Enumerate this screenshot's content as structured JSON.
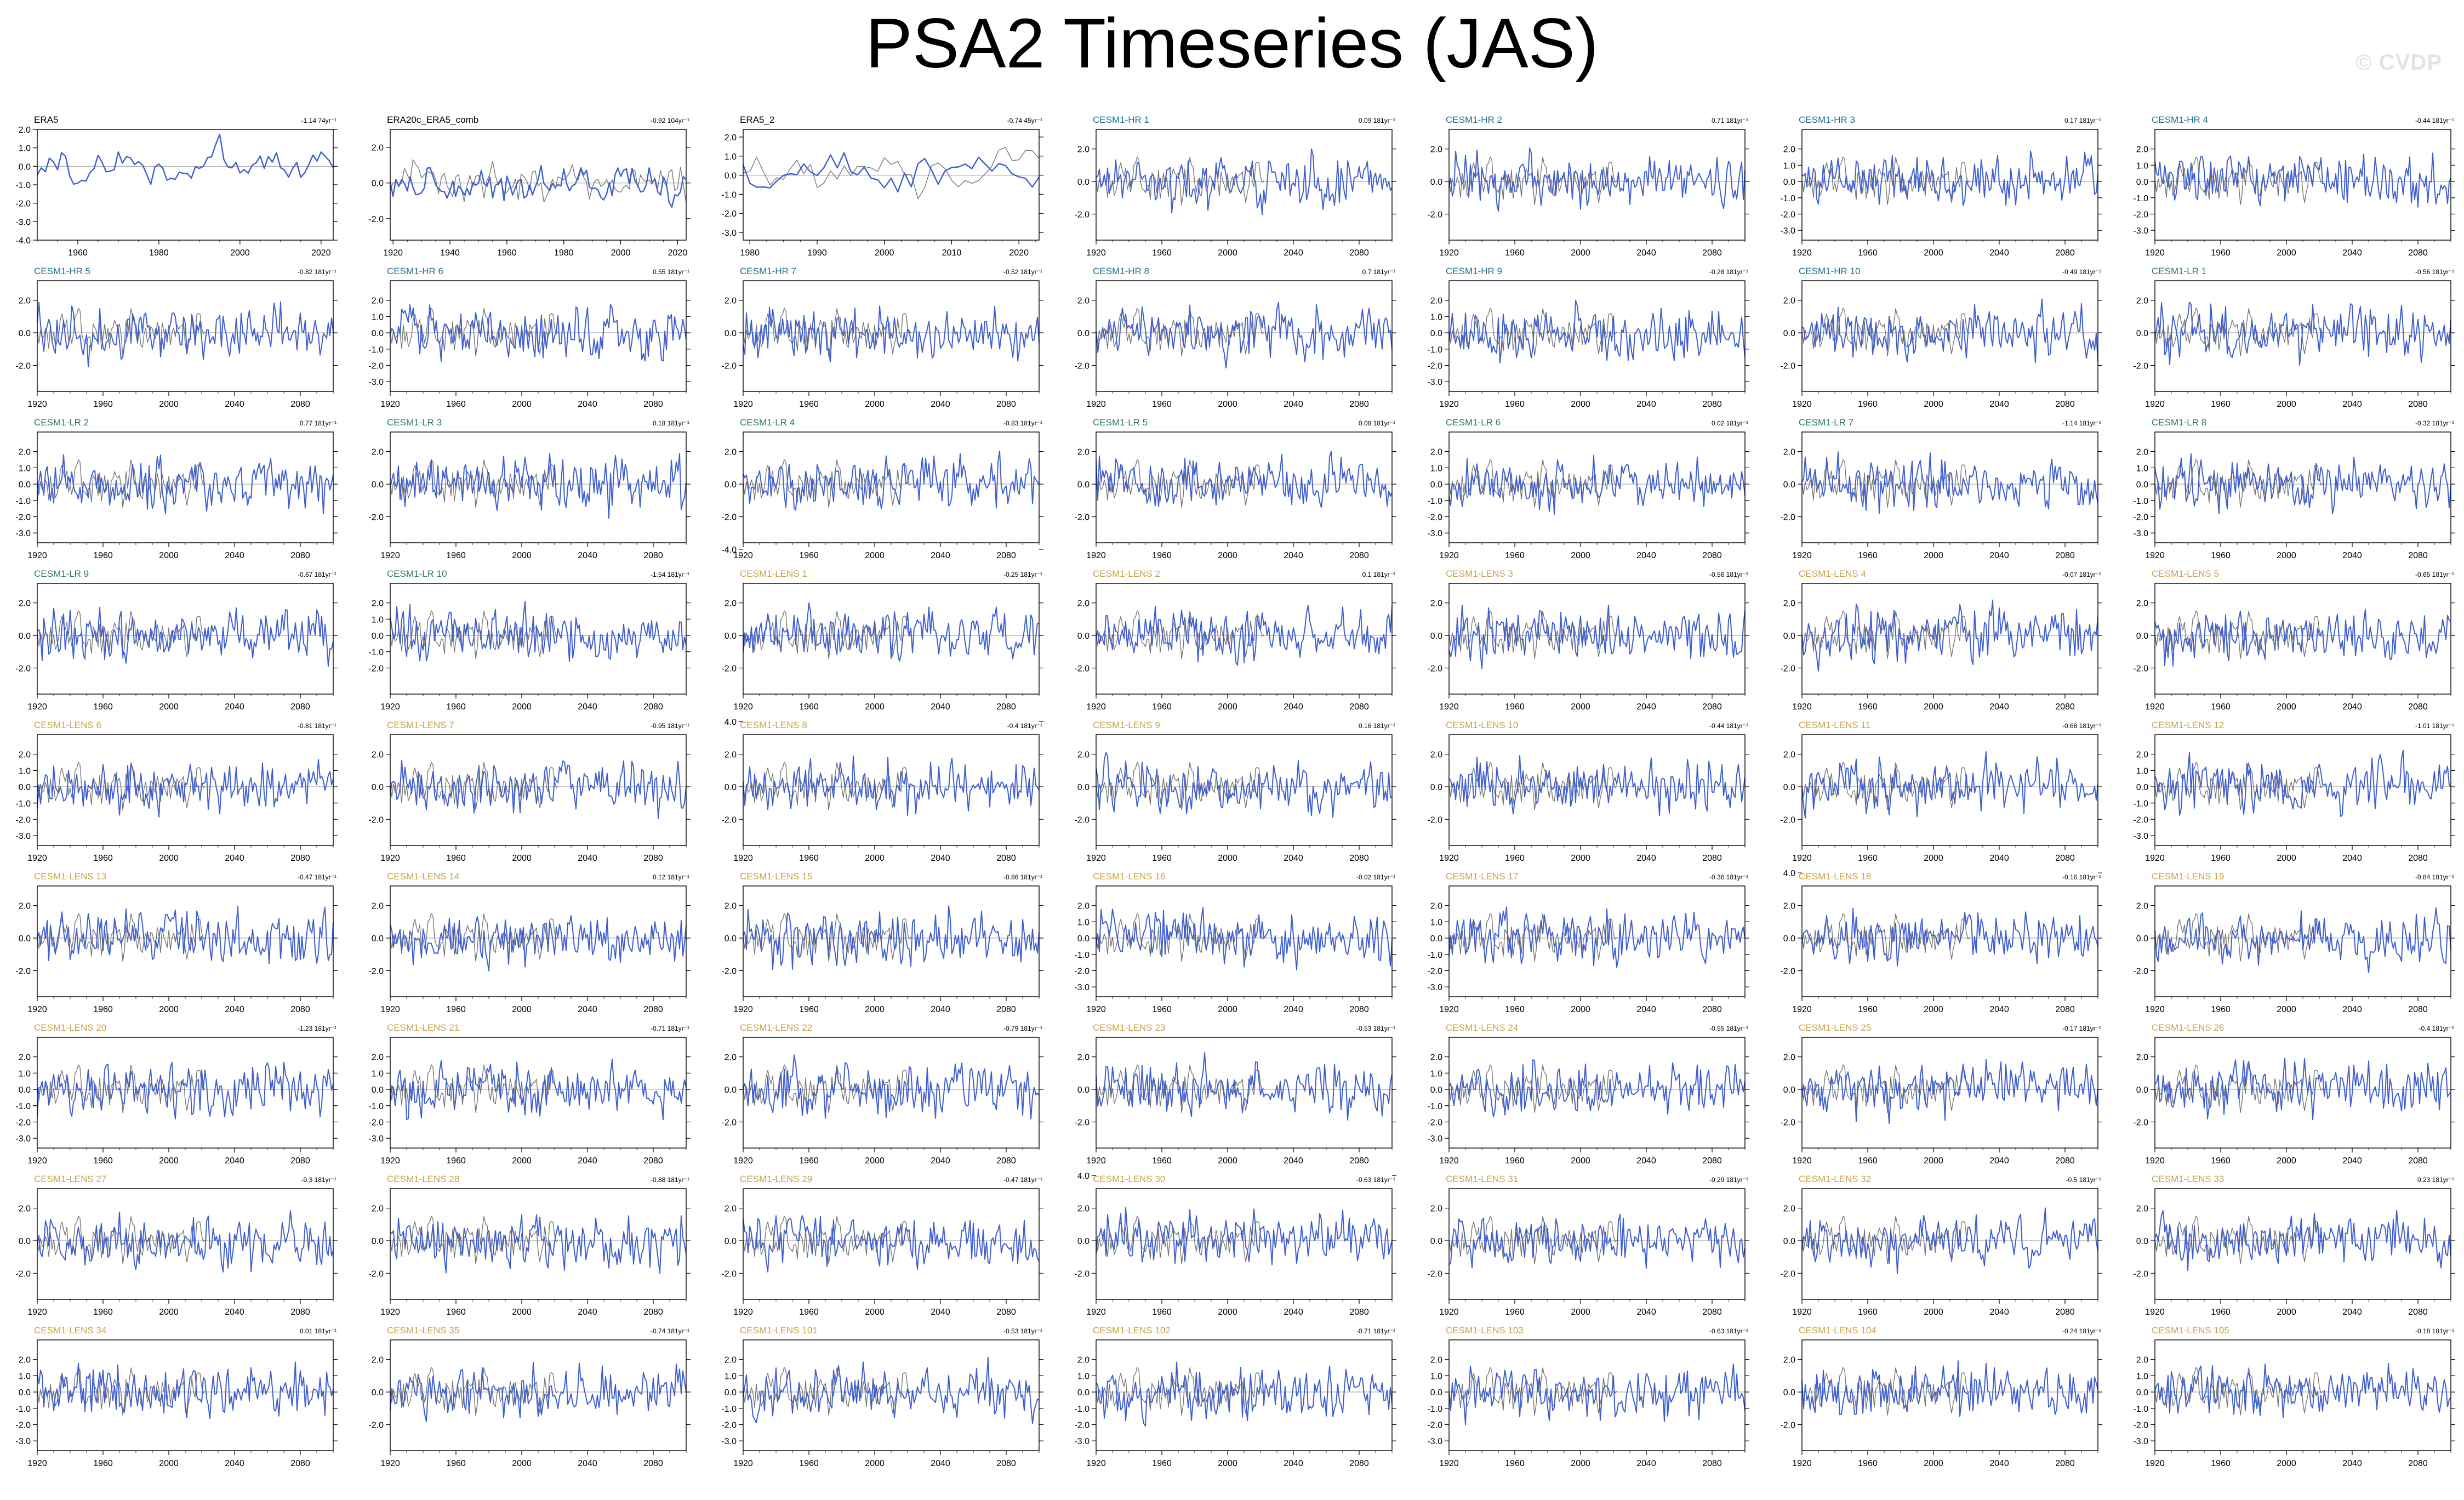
{
  "page": {
    "title": "PSA2 Timeseries (JAS)",
    "watermark": "© CVDP"
  },
  "colors": {
    "obs": "#000000",
    "model": "#3f5fd0",
    "ref_obs": "#777777",
    "zero_line": "#9a9a9a",
    "label_obs": "#000000",
    "label_hr": "#1f6f8f",
    "label_lr": "#2e7d52",
    "label_lens": "#c8a24a"
  },
  "chart_data": {
    "type": "line",
    "layout": {
      "rows": 9,
      "cols": 7
    },
    "panels": [
      {
        "name": "ERA5",
        "kind": "obs",
        "trend": "-1.14 74yr⁻¹",
        "xticks": [
          1960,
          1980,
          2000,
          2020
        ],
        "yticks": [
          "2.0",
          "1.0",
          "0.0",
          "-1.0",
          "-2.0",
          "-3.0",
          "-4.0"
        ],
        "xlim": [
          1950,
          2023
        ],
        "ylim": [
          -4,
          2
        ]
      },
      {
        "name": "ERA20c_ERA5_comb",
        "kind": "obs",
        "trend": "-0.92 104yr⁻¹",
        "xticks": [
          1920,
          1940,
          1960,
          1980,
          2000,
          2020
        ],
        "yticks": [
          "2.0",
          "0.0",
          "-2.0"
        ],
        "xlim": [
          1919,
          2023
        ],
        "ylim": [
          -3.2,
          3
        ]
      },
      {
        "name": "ERA5_2",
        "kind": "obs",
        "trend": "-0.74 45yr⁻¹",
        "xticks": [
          1980,
          1990,
          2000,
          2010,
          2020
        ],
        "yticks": [
          "2.0",
          "1.0",
          "0.0",
          "-1.0",
          "-2.0",
          "-3.0"
        ],
        "xlim": [
          1979,
          2023
        ],
        "ylim": [
          -3.4,
          2.4
        ]
      },
      {
        "name": "CESM1-HR 1",
        "kind": "hr",
        "trend": "0.09 181yr⁻¹"
      },
      {
        "name": "CESM1-HR 2",
        "kind": "hr",
        "trend": "0.71 181yr⁻¹"
      },
      {
        "name": "CESM1-HR 3",
        "kind": "hr",
        "trend": "0.17 181yr⁻¹",
        "yticks": [
          "2.0",
          "1.0",
          "0.0",
          "-1.0",
          "-2.0",
          "-3.0"
        ]
      },
      {
        "name": "CESM1-HR 4",
        "kind": "hr",
        "trend": "-0.44 181yr⁻¹",
        "yticks": [
          "2.0",
          "1.0",
          "0.0",
          "-1.0",
          "-2.0",
          "-3.0"
        ]
      },
      {
        "name": "CESM1-HR 5",
        "kind": "hr",
        "trend": "-0.82 181yr⁻¹"
      },
      {
        "name": "CESM1-HR 6",
        "kind": "hr",
        "trend": "0.55 181yr⁻¹",
        "yticks": [
          "2.0",
          "1.0",
          "0.0",
          "-1.0",
          "-2.0",
          "-3.0"
        ]
      },
      {
        "name": "CESM1-HR 7",
        "kind": "hr",
        "trend": "-0.52 181yr⁻¹"
      },
      {
        "name": "CESM1-HR 8",
        "kind": "hr",
        "trend": "0.7 181yr⁻¹"
      },
      {
        "name": "CESM1-HR 9",
        "kind": "hr",
        "trend": "-0.28 181yr⁻¹",
        "yticks": [
          "2.0",
          "1.0",
          "0.0",
          "-1.0",
          "-2.0",
          "-3.0"
        ]
      },
      {
        "name": "CESM1-HR 10",
        "kind": "hr",
        "trend": "-0.49 181yr⁻¹"
      },
      {
        "name": "CESM1-LR 1",
        "kind": "lr",
        "trend": "-0.56 181yr⁻¹"
      },
      {
        "name": "CESM1-LR 2",
        "kind": "lr",
        "trend": "0.77 181yr⁻¹",
        "yticks": [
          "2.0",
          "1.0",
          "0.0",
          "-1.0",
          "-2.0",
          "-3.0"
        ]
      },
      {
        "name": "CESM1-LR 3",
        "kind": "lr",
        "trend": "0.18 181yr⁻¹"
      },
      {
        "name": "CESM1-LR 4",
        "kind": "lr",
        "trend": "-0.83 181yr⁻¹",
        "yticks": [
          "2.0",
          "0.0",
          "-2.0",
          "-4.0"
        ]
      },
      {
        "name": "CESM1-LR 5",
        "kind": "lr",
        "trend": "0.08 181yr⁻¹"
      },
      {
        "name": "CESM1-LR 6",
        "kind": "lr",
        "trend": "0.02 181yr⁻¹",
        "yticks": [
          "2.0",
          "1.0",
          "0.0",
          "-1.0",
          "-2.0",
          "-3.0"
        ]
      },
      {
        "name": "CESM1-LR 7",
        "kind": "lr",
        "trend": "-1.14 181yr⁻¹"
      },
      {
        "name": "CESM1-LR 8",
        "kind": "lr",
        "trend": "-0.32 181yr⁻¹",
        "yticks": [
          "2.0",
          "1.0",
          "0.0",
          "-1.0",
          "-2.0",
          "-3.0"
        ]
      },
      {
        "name": "CESM1-LR 9",
        "kind": "lr",
        "trend": "-0.67 181yr⁻¹"
      },
      {
        "name": "CESM1-LR 10",
        "kind": "lr",
        "trend": "-1.54 181yr⁻¹",
        "yticks": [
          "2.0",
          "1.0",
          "0.0",
          "-1.0",
          "-2.0"
        ]
      },
      {
        "name": "CESM1-LENS 1",
        "kind": "lens",
        "trend": "-0.25 181yr⁻¹"
      },
      {
        "name": "CESM1-LENS 2",
        "kind": "lens",
        "trend": "0.1 181yr⁻¹"
      },
      {
        "name": "CESM1-LENS 3",
        "kind": "lens",
        "trend": "-0.56 181yr⁻¹"
      },
      {
        "name": "CESM1-LENS 4",
        "kind": "lens",
        "trend": "-0.07 181yr⁻¹"
      },
      {
        "name": "CESM1-LENS 5",
        "kind": "lens",
        "trend": "-0.65 181yr⁻¹"
      },
      {
        "name": "CESM1-LENS 6",
        "kind": "lens",
        "trend": "-0.81 181yr⁻¹",
        "yticks": [
          "2.0",
          "1.0",
          "0.0",
          "-1.0",
          "-2.0",
          "-3.0"
        ]
      },
      {
        "name": "CESM1-LENS 7",
        "kind": "lens",
        "trend": "-0.95 181yr⁻¹"
      },
      {
        "name": "CESM1-LENS 8",
        "kind": "lens",
        "trend": "-0.4 181yr⁻¹",
        "yticks": [
          "4.0",
          "2.0",
          "0.0",
          "-2.0"
        ]
      },
      {
        "name": "CESM1-LENS 9",
        "kind": "lens",
        "trend": "0.16 181yr⁻¹"
      },
      {
        "name": "CESM1-LENS 10",
        "kind": "lens",
        "trend": "-0.44 181yr⁻¹"
      },
      {
        "name": "CESM1-LENS 11",
        "kind": "lens",
        "trend": "-0.68 181yr⁻¹"
      },
      {
        "name": "CESM1-LENS 12",
        "kind": "lens",
        "trend": "-1.01 181yr⁻¹",
        "yticks": [
          "2.0",
          "1.0",
          "0.0",
          "-1.0",
          "-2.0",
          "-3.0"
        ]
      },
      {
        "name": "CESM1-LENS 13",
        "kind": "lens",
        "trend": "-0.47 181yr⁻¹"
      },
      {
        "name": "CESM1-LENS 14",
        "kind": "lens",
        "trend": "0.12 181yr⁻¹"
      },
      {
        "name": "CESM1-LENS 15",
        "kind": "lens",
        "trend": "-0.86 181yr⁻¹"
      },
      {
        "name": "CESM1-LENS 16",
        "kind": "lens",
        "trend": "-0.02 181yr⁻¹",
        "yticks": [
          "2.0",
          "1.0",
          "0.0",
          "-1.0",
          "-2.0",
          "-3.0"
        ]
      },
      {
        "name": "CESM1-LENS 17",
        "kind": "lens",
        "trend": "-0.36 181yr⁻¹",
        "yticks": [
          "2.0",
          "1.0",
          "0.0",
          "-1.0",
          "-2.0",
          "-3.0"
        ]
      },
      {
        "name": "CESM1-LENS 18",
        "kind": "lens",
        "trend": "-0.16 181yr⁻¹",
        "yticks": [
          "4.0",
          "2.0",
          "0.0",
          "-2.0"
        ]
      },
      {
        "name": "CESM1-LENS 19",
        "kind": "lens",
        "trend": "-0.84 181yr⁻¹"
      },
      {
        "name": "CESM1-LENS 20",
        "kind": "lens",
        "trend": "-1.23 181yr⁻¹",
        "yticks": [
          "2.0",
          "1.0",
          "0.0",
          "-1.0",
          "-2.0",
          "-3.0"
        ]
      },
      {
        "name": "CESM1-LENS 21",
        "kind": "lens",
        "trend": "-0.71 181yr⁻¹",
        "yticks": [
          "2.0",
          "1.0",
          "0.0",
          "-1.0",
          "-2.0",
          "-3.0"
        ]
      },
      {
        "name": "CESM1-LENS 22",
        "kind": "lens",
        "trend": "-0.79 181yr⁻¹"
      },
      {
        "name": "CESM1-LENS 23",
        "kind": "lens",
        "trend": "-0.53 181yr⁻¹"
      },
      {
        "name": "CESM1-LENS 24",
        "kind": "lens",
        "trend": "-0.55 181yr⁻¹",
        "yticks": [
          "2.0",
          "1.0",
          "0.0",
          "-1.0",
          "-2.0",
          "-3.0"
        ]
      },
      {
        "name": "CESM1-LENS 25",
        "kind": "lens",
        "trend": "-0.17 181yr⁻¹"
      },
      {
        "name": "CESM1-LENS 26",
        "kind": "lens",
        "trend": "-0.4 181yr⁻¹"
      },
      {
        "name": "CESM1-LENS 27",
        "kind": "lens",
        "trend": "-0.3 181yr⁻¹"
      },
      {
        "name": "CESM1-LENS 28",
        "kind": "lens",
        "trend": "-0.88 181yr⁻¹"
      },
      {
        "name": "CESM1-LENS 29",
        "kind": "lens",
        "trend": "-0.47 181yr⁻¹"
      },
      {
        "name": "CESM1-LENS 30",
        "kind": "lens",
        "trend": "-0.63 181yr⁻¹",
        "yticks": [
          "4.0",
          "2.0",
          "0.0",
          "-2.0"
        ]
      },
      {
        "name": "CESM1-LENS 31",
        "kind": "lens",
        "trend": "-0.29 181yr⁻¹"
      },
      {
        "name": "CESM1-LENS 32",
        "kind": "lens",
        "trend": "-0.5 181yr⁻¹"
      },
      {
        "name": "CESM1-LENS 33",
        "kind": "lens",
        "trend": "0.23 181yr⁻¹"
      },
      {
        "name": "CESM1-LENS 34",
        "kind": "lens",
        "trend": "0.01 181yr⁻¹",
        "yticks": [
          "2.0",
          "1.0",
          "0.0",
          "-1.0",
          "-2.0",
          "-3.0"
        ]
      },
      {
        "name": "CESM1-LENS 35",
        "kind": "lens",
        "trend": "-0.74 181yr⁻¹"
      },
      {
        "name": "CESM1-LENS 101",
        "kind": "lens",
        "trend": "-0.53 181yr⁻¹",
        "yticks": [
          "2.0",
          "1.0",
          "0.0",
          "-1.0",
          "-2.0",
          "-3.0"
        ]
      },
      {
        "name": "CESM1-LENS 102",
        "kind": "lens",
        "trend": "-0.71 181yr⁻¹",
        "yticks": [
          "2.0",
          "1.0",
          "0.0",
          "-1.0",
          "-2.0",
          "-3.0"
        ]
      },
      {
        "name": "CESM1-LENS 103",
        "kind": "lens",
        "trend": "-0.63 181yr⁻¹",
        "yticks": [
          "2.0",
          "1.0",
          "0.0",
          "-1.0",
          "-2.0",
          "-3.0"
        ]
      },
      {
        "name": "CESM1-LENS 104",
        "kind": "lens",
        "trend": "-0.24 181yr⁻¹"
      },
      {
        "name": "CESM1-LENS 105",
        "kind": "lens",
        "trend": "-0.18 181yr⁻¹",
        "yticks": [
          "2.0",
          "1.0",
          "0.0",
          "-1.0",
          "-2.0",
          "-3.0"
        ]
      }
    ],
    "model_defaults": {
      "xticks": [
        1920,
        1960,
        2000,
        2040,
        2080
      ],
      "xlim": [
        1920,
        2100
      ],
      "yticks": [
        "2.0",
        "0.0",
        "-2.0"
      ],
      "ylim": [
        -3.6,
        3.2
      ]
    }
  }
}
